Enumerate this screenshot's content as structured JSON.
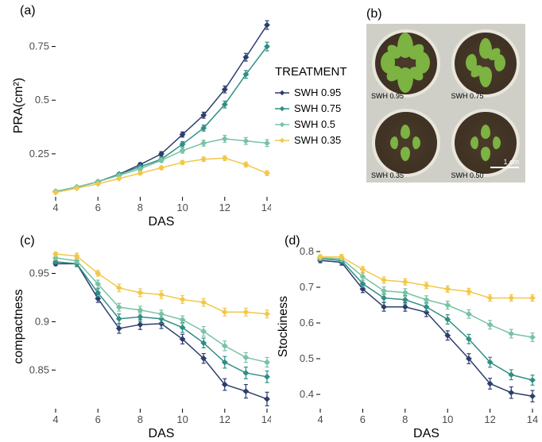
{
  "colors": {
    "swh095": "#2d3e6e",
    "swh075": "#2f8f85",
    "swh05": "#78c2a4",
    "swh035": "#f2c84b",
    "axis": "#000000",
    "ticktext": "#4d4d4d",
    "bg": "#ffffff"
  },
  "legend": {
    "title": "TREATMENT",
    "items": [
      {
        "label": "SWH 0.95",
        "color_key": "swh095",
        "shape": "diamond"
      },
      {
        "label": "SWH 0.75",
        "color_key": "swh075",
        "shape": "diamond"
      },
      {
        "label": "SWH 0.5",
        "color_key": "swh05",
        "shape": "diamond"
      },
      {
        "label": "SWH 0.35",
        "color_key": "swh035",
        "shape": "diamond"
      }
    ]
  },
  "panel_a": {
    "label": "(a)",
    "type": "line",
    "xlabel": "DAS",
    "ylabel": "PRA(cm²)",
    "xlim": [
      4,
      14
    ],
    "ylim": [
      0.05,
      0.9
    ],
    "xticks": [
      4,
      6,
      8,
      10,
      12,
      14
    ],
    "yticks": [
      0.25,
      0.5,
      0.75
    ],
    "x": [
      4,
      5,
      6,
      7,
      8,
      9,
      10,
      11,
      12,
      13,
      14
    ],
    "series": [
      {
        "key": "swh095",
        "y": [
          0.075,
          0.095,
          0.12,
          0.155,
          0.2,
          0.25,
          0.34,
          0.43,
          0.55,
          0.7,
          0.85
        ],
        "err": [
          0.005,
          0.005,
          0.006,
          0.007,
          0.008,
          0.01,
          0.012,
          0.014,
          0.016,
          0.018,
          0.02
        ]
      },
      {
        "key": "swh075",
        "y": [
          0.075,
          0.095,
          0.12,
          0.155,
          0.19,
          0.225,
          0.295,
          0.37,
          0.48,
          0.62,
          0.75
        ],
        "err": [
          0.005,
          0.005,
          0.006,
          0.007,
          0.008,
          0.01,
          0.012,
          0.014,
          0.016,
          0.018,
          0.02
        ]
      },
      {
        "key": "swh05",
        "y": [
          0.075,
          0.095,
          0.12,
          0.15,
          0.18,
          0.22,
          0.265,
          0.3,
          0.32,
          0.31,
          0.3
        ],
        "err": [
          0.005,
          0.005,
          0.006,
          0.007,
          0.008,
          0.01,
          0.012,
          0.014,
          0.016,
          0.016,
          0.016
        ]
      },
      {
        "key": "swh035",
        "y": [
          0.07,
          0.09,
          0.11,
          0.135,
          0.16,
          0.185,
          0.21,
          0.225,
          0.23,
          0.2,
          0.16
        ],
        "err": [
          0.004,
          0.005,
          0.005,
          0.006,
          0.007,
          0.008,
          0.009,
          0.01,
          0.011,
          0.011,
          0.011
        ]
      }
    ]
  },
  "panel_b": {
    "label": "(b)",
    "pots": [
      {
        "label": "SWH 0.95",
        "size": "large"
      },
      {
        "label": "SWH 0.75",
        "size": "medium"
      },
      {
        "label": "SWH 0.35",
        "size": "small"
      },
      {
        "label": "SWH 0.50",
        "size": "small2"
      }
    ],
    "scalebar": "1 cm"
  },
  "panel_c": {
    "label": "(c)",
    "type": "line",
    "xlabel": "DAS",
    "ylabel": "compactness",
    "xlim": [
      4,
      14
    ],
    "ylim": [
      0.81,
      0.98
    ],
    "xticks": [
      4,
      6,
      8,
      10,
      12,
      14
    ],
    "yticks": [
      0.85,
      0.9,
      0.95
    ],
    "x": [
      4,
      5,
      6,
      7,
      8,
      9,
      10,
      11,
      12,
      13,
      14
    ],
    "series": [
      {
        "key": "swh095",
        "y": [
          0.96,
          0.96,
          0.924,
          0.893,
          0.897,
          0.898,
          0.882,
          0.862,
          0.835,
          0.828,
          0.82
        ],
        "err": [
          0.002,
          0.003,
          0.004,
          0.005,
          0.005,
          0.005,
          0.005,
          0.005,
          0.006,
          0.007,
          0.007
        ]
      },
      {
        "key": "swh075",
        "y": [
          0.962,
          0.96,
          0.93,
          0.903,
          0.905,
          0.903,
          0.894,
          0.878,
          0.858,
          0.847,
          0.843
        ],
        "err": [
          0.002,
          0.003,
          0.004,
          0.005,
          0.005,
          0.005,
          0.005,
          0.005,
          0.006,
          0.006,
          0.006
        ]
      },
      {
        "key": "swh05",
        "y": [
          0.966,
          0.963,
          0.939,
          0.915,
          0.912,
          0.908,
          0.902,
          0.89,
          0.875,
          0.863,
          0.858
        ],
        "err": [
          0.002,
          0.003,
          0.004,
          0.004,
          0.004,
          0.004,
          0.004,
          0.005,
          0.005,
          0.005,
          0.005
        ]
      },
      {
        "key": "swh035",
        "y": [
          0.97,
          0.968,
          0.95,
          0.935,
          0.93,
          0.928,
          0.923,
          0.92,
          0.91,
          0.91,
          0.908
        ],
        "err": [
          0.002,
          0.003,
          0.003,
          0.004,
          0.004,
          0.004,
          0.004,
          0.004,
          0.004,
          0.004,
          0.004
        ]
      }
    ]
  },
  "panel_d": {
    "label": "(d)",
    "type": "line",
    "xlabel": "DAS",
    "ylabel": "Stockiness",
    "xlim": [
      4,
      14
    ],
    "ylim": [
      0.36,
      0.82
    ],
    "xticks": [
      4,
      6,
      8,
      10,
      12,
      14
    ],
    "yticks": [
      0.4,
      0.5,
      0.6,
      0.7,
      0.8
    ],
    "x": [
      4,
      5,
      6,
      7,
      8,
      9,
      10,
      11,
      12,
      13,
      14
    ],
    "series": [
      {
        "key": "swh095",
        "y": [
          0.775,
          0.77,
          0.695,
          0.645,
          0.645,
          0.63,
          0.565,
          0.5,
          0.43,
          0.405,
          0.395
        ],
        "err": [
          0.006,
          0.008,
          0.01,
          0.012,
          0.012,
          0.012,
          0.013,
          0.014,
          0.015,
          0.016,
          0.016
        ]
      },
      {
        "key": "swh075",
        "y": [
          0.78,
          0.775,
          0.71,
          0.67,
          0.665,
          0.645,
          0.61,
          0.555,
          0.49,
          0.455,
          0.44
        ],
        "err": [
          0.006,
          0.008,
          0.01,
          0.012,
          0.012,
          0.012,
          0.013,
          0.013,
          0.014,
          0.014,
          0.014
        ]
      },
      {
        "key": "swh05",
        "y": [
          0.782,
          0.78,
          0.73,
          0.69,
          0.685,
          0.665,
          0.65,
          0.625,
          0.595,
          0.57,
          0.56
        ],
        "err": [
          0.006,
          0.008,
          0.01,
          0.011,
          0.011,
          0.011,
          0.011,
          0.012,
          0.012,
          0.012,
          0.012
        ]
      },
      {
        "key": "swh035",
        "y": [
          0.785,
          0.785,
          0.75,
          0.72,
          0.715,
          0.705,
          0.695,
          0.688,
          0.67,
          0.67,
          0.67
        ],
        "err": [
          0.006,
          0.007,
          0.008,
          0.009,
          0.009,
          0.009,
          0.009,
          0.009,
          0.009,
          0.009,
          0.009
        ]
      }
    ]
  }
}
